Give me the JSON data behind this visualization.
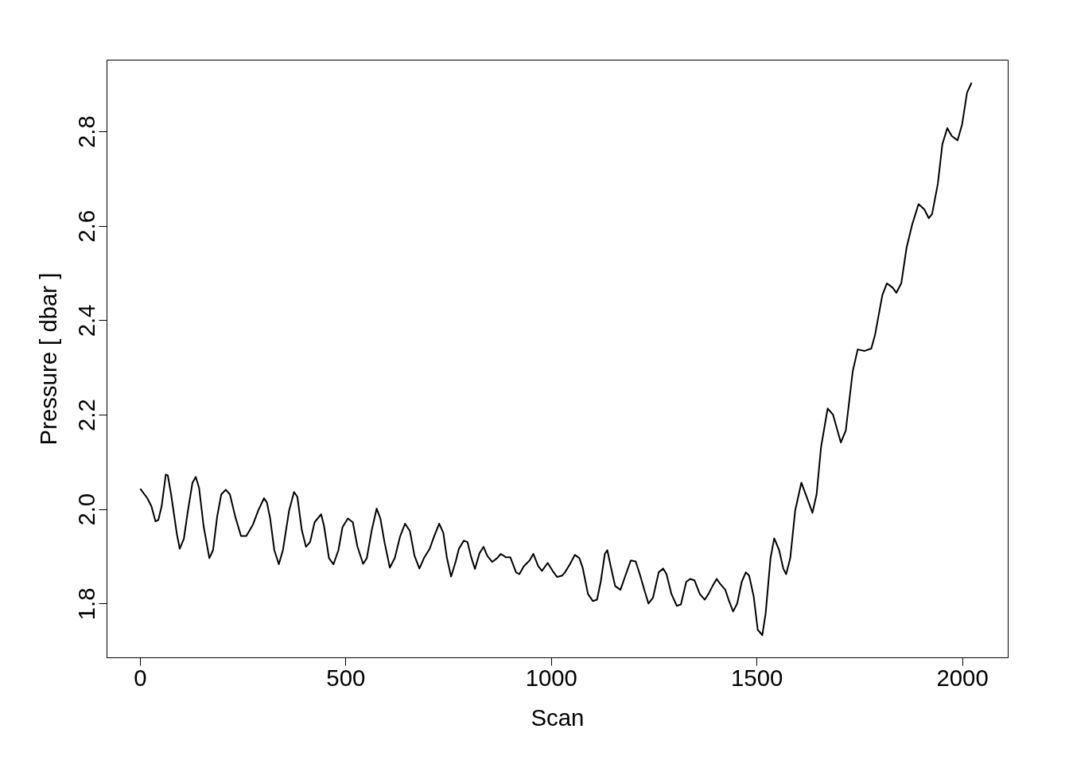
{
  "chart_data": {
    "type": "line",
    "xlabel": "Scan",
    "ylabel": "Pressure [ dbar ]",
    "xlim": [
      -81,
      2111
    ],
    "ylim": [
      1.686,
      2.952
    ],
    "xticks": [
      0,
      500,
      1000,
      1500,
      2000
    ],
    "yticks": [
      1.8,
      {
        "value": 2,
        "label": "2.0"
      },
      2.2,
      2.4,
      2.6,
      2.8
    ],
    "grid": false,
    "marker": "none",
    "line_style": "solid",
    "series": [
      {
        "color": "#000000",
        "x": [
          0,
          17,
          27,
          37,
          44,
          52,
          62,
          67,
          75,
          89,
          96,
          106,
          116,
          127,
          135,
          143,
          154,
          168,
          177,
          187,
          197,
          208,
          218,
          231,
          245,
          258,
          274,
          287,
          301,
          308,
          316,
          326,
          337,
          347,
          362,
          374,
          382,
          393,
          403,
          413,
          424,
          440,
          447,
          459,
          470,
          482,
          492,
          505,
          517,
          528,
          542,
          551,
          563,
          575,
          584,
          594,
          607,
          619,
          632,
          644,
          656,
          667,
          679,
          690,
          704,
          713,
          727,
          737,
          746,
          756,
          767,
          775,
          787,
          796,
          804,
          814,
          825,
          835,
          844,
          856,
          868,
          877,
          889,
          900,
          914,
          922,
          933,
          947,
          956,
          968,
          977,
          991,
          1003,
          1014,
          1026,
          1033,
          1045,
          1057,
          1068,
          1076,
          1089,
          1101,
          1111,
          1120,
          1130,
          1136,
          1145,
          1155,
          1168,
          1180,
          1193,
          1205,
          1215,
          1226,
          1236,
          1247,
          1261,
          1272,
          1280,
          1292,
          1305,
          1315,
          1328,
          1338,
          1348,
          1361,
          1373,
          1382,
          1392,
          1402,
          1411,
          1423,
          1431,
          1442,
          1452,
          1463,
          1473,
          1481,
          1492,
          1502,
          1513,
          1521,
          1533,
          1542,
          1554,
          1564,
          1571,
          1581,
          1593,
          1608,
          1620,
          1635,
          1645,
          1656,
          1672,
          1685,
          1704,
          1716,
          1733,
          1745,
          1762,
          1778,
          1787,
          1805,
          1816,
          1830,
          1839,
          1851,
          1864,
          1878,
          1893,
          1907,
          1918,
          1926,
          1940,
          1951,
          1963,
          1974,
          1988,
          1999,
          2011,
          2022
        ],
        "values": [
          2.044,
          2.024,
          2.007,
          1.975,
          1.978,
          2.007,
          2.074,
          2.072,
          2.032,
          1.948,
          1.917,
          1.938,
          1.998,
          2.057,
          2.069,
          2.046,
          1.965,
          1.897,
          1.914,
          1.985,
          2.032,
          2.042,
          2.032,
          1.985,
          1.944,
          1.944,
          1.968,
          1.998,
          2.024,
          2.015,
          1.981,
          1.914,
          1.884,
          1.914,
          1.998,
          2.037,
          2.027,
          1.956,
          1.921,
          1.931,
          1.973,
          1.99,
          1.965,
          1.897,
          1.884,
          1.914,
          1.963,
          1.981,
          1.973,
          1.922,
          1.885,
          1.897,
          1.956,
          2.002,
          1.981,
          1.931,
          1.877,
          1.897,
          1.943,
          1.97,
          1.954,
          1.902,
          1.875,
          1.897,
          1.917,
          1.939,
          1.97,
          1.951,
          1.897,
          1.858,
          1.889,
          1.917,
          1.934,
          1.931,
          1.902,
          1.874,
          1.907,
          1.921,
          1.902,
          1.889,
          1.897,
          1.906,
          1.899,
          1.899,
          1.867,
          1.863,
          1.88,
          1.892,
          1.906,
          1.88,
          1.87,
          1.887,
          1.87,
          1.857,
          1.86,
          1.867,
          1.884,
          1.904,
          1.897,
          1.877,
          1.821,
          1.806,
          1.809,
          1.847,
          1.906,
          1.914,
          1.877,
          1.838,
          1.83,
          1.86,
          1.892,
          1.89,
          1.863,
          1.83,
          1.801,
          1.813,
          1.867,
          1.875,
          1.863,
          1.821,
          1.796,
          1.799,
          1.847,
          1.853,
          1.85,
          1.821,
          1.809,
          1.821,
          1.838,
          1.853,
          1.842,
          1.83,
          1.809,
          1.784,
          1.801,
          1.847,
          1.867,
          1.86,
          1.816,
          1.745,
          1.734,
          1.779,
          1.897,
          1.939,
          1.914,
          1.875,
          1.863,
          1.897,
          1.998,
          2.057,
          2.029,
          1.993,
          2.032,
          2.133,
          2.214,
          2.201,
          2.142,
          2.167,
          2.293,
          2.339,
          2.336,
          2.341,
          2.369,
          2.454,
          2.479,
          2.47,
          2.459,
          2.479,
          2.555,
          2.605,
          2.647,
          2.636,
          2.617,
          2.626,
          2.69,
          2.774,
          2.808,
          2.791,
          2.782,
          2.816,
          2.883,
          2.904
        ]
      }
    ]
  }
}
